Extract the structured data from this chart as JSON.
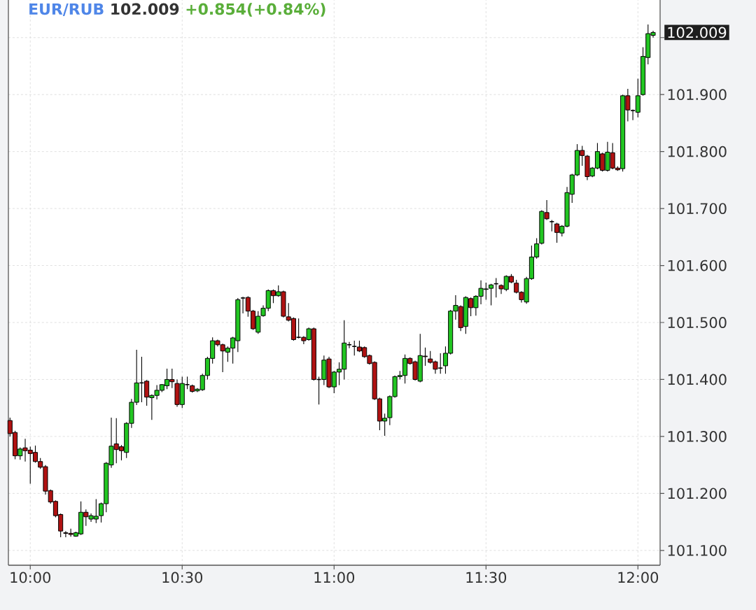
{
  "chart_data": {
    "type": "candlestick",
    "title": "EUR/RUB",
    "subtitle": "102.009",
    "annotations": [
      "+0.854(+0.84%)",
      "102.009"
    ],
    "x": [
      9.9333,
      9.95,
      9.9667,
      9.9833,
      10,
      10.0167,
      10.0333,
      10.05,
      10.0667,
      10.0833,
      10.1,
      10.1167,
      10.1333,
      10.15,
      10.1667,
      10.1833,
      10.2,
      10.2167,
      10.2333,
      10.25,
      10.2667,
      10.2833,
      10.3,
      10.3167,
      10.3333,
      10.35,
      10.3667,
      10.3833,
      10.4,
      10.4167,
      10.4333,
      10.45,
      10.4667,
      10.4833,
      10.5,
      10.5167,
      10.5333,
      10.55,
      10.5667,
      10.5833,
      10.6,
      10.6167,
      10.6333,
      10.65,
      10.6667,
      10.6833,
      10.7,
      10.7167,
      10.7333,
      10.75,
      10.7667,
      10.7833,
      10.8,
      10.8167,
      10.8333,
      10.85,
      10.8667,
      10.8833,
      10.9,
      10.9167,
      10.9333,
      10.95,
      10.9667,
      10.9833,
      11,
      11.0167,
      11.0333,
      11.05,
      11.0667,
      11.0833,
      11.1,
      11.1167,
      11.1333,
      11.15,
      11.1667,
      11.1833,
      11.2,
      11.2167,
      11.2333,
      11.25,
      11.2667,
      11.2833,
      11.3,
      11.3167,
      11.3333,
      11.35,
      11.3667,
      11.3833,
      11.4,
      11.4167,
      11.4333,
      11.45,
      11.4667,
      11.4833,
      11.5,
      11.5167,
      11.5333,
      11.55,
      11.5667,
      11.5833,
      11.6,
      11.6167,
      11.6333,
      11.65,
      11.6667,
      11.6833,
      11.7,
      11.7167,
      11.7333,
      11.75,
      11.7667,
      11.7833,
      11.8,
      11.8167,
      11.8333,
      11.85,
      11.8667,
      11.8833,
      11.9,
      11.9167,
      11.9333,
      11.95,
      11.9667,
      11.9833,
      12,
      12.0167,
      12.0333,
      12.05
    ],
    "ohlc": [
      [
        101.328,
        101.333,
        101.3,
        101.305
      ],
      [
        101.307,
        101.31,
        101.26,
        101.266
      ],
      [
        101.266,
        101.281,
        101.259,
        101.278
      ],
      [
        101.28,
        101.296,
        101.256,
        101.275
      ],
      [
        101.276,
        101.282,
        101.217,
        101.27
      ],
      [
        101.272,
        101.284,
        101.254,
        101.256
      ],
      [
        101.256,
        101.262,
        101.243,
        101.246
      ],
      [
        101.247,
        101.25,
        101.198,
        101.204
      ],
      [
        101.205,
        101.207,
        101.182,
        101.185
      ],
      [
        101.186,
        101.188,
        101.158,
        101.161
      ],
      [
        101.163,
        101.165,
        101.123,
        101.134
      ],
      [
        101.131,
        101.134,
        101.123,
        101.13
      ],
      [
        101.13,
        101.138,
        101.124,
        101.128
      ],
      [
        101.125,
        101.133,
        101.124,
        101.131
      ],
      [
        101.129,
        101.186,
        101.127,
        101.167
      ],
      [
        101.167,
        101.172,
        101.143,
        101.159
      ],
      [
        101.155,
        101.165,
        101.15,
        101.161
      ],
      [
        101.155,
        101.19,
        101.148,
        101.16
      ],
      [
        101.161,
        101.184,
        101.149,
        101.182
      ],
      [
        101.182,
        101.255,
        101.167,
        101.253
      ],
      [
        101.25,
        101.333,
        101.245,
        101.283
      ],
      [
        101.287,
        101.332,
        101.253,
        101.277
      ],
      [
        101.282,
        101.285,
        101.258,
        101.275
      ],
      [
        101.272,
        101.325,
        101.262,
        101.323
      ],
      [
        101.323,
        101.366,
        101.315,
        101.36
      ],
      [
        101.36,
        101.452,
        101.355,
        101.394
      ],
      [
        101.394,
        101.44,
        101.36,
        101.394
      ],
      [
        101.397,
        101.399,
        101.354,
        101.369
      ],
      [
        101.368,
        101.374,
        101.329,
        101.372
      ],
      [
        101.372,
        101.39,
        101.365,
        101.381
      ],
      [
        101.381,
        101.392,
        101.378,
        101.391
      ],
      [
        101.389,
        101.419,
        101.383,
        101.4
      ],
      [
        101.4,
        101.419,
        101.385,
        101.396
      ],
      [
        101.393,
        101.4,
        101.352,
        101.356
      ],
      [
        101.356,
        101.405,
        101.35,
        101.393
      ],
      [
        101.391,
        101.405,
        101.383,
        101.391
      ],
      [
        101.389,
        101.391,
        101.377,
        101.379
      ],
      [
        101.38,
        101.385,
        101.378,
        101.383
      ],
      [
        101.382,
        101.41,
        101.38,
        101.407
      ],
      [
        101.407,
        101.44,
        101.4,
        101.437
      ],
      [
        101.437,
        101.474,
        101.428,
        101.468
      ],
      [
        101.468,
        101.47,
        101.458,
        101.461
      ],
      [
        101.461,
        101.463,
        101.413,
        101.45
      ],
      [
        101.448,
        101.458,
        101.431,
        101.455
      ],
      [
        101.455,
        101.475,
        101.428,
        101.473
      ],
      [
        101.468,
        101.543,
        101.448,
        101.54
      ],
      [
        101.543,
        101.545,
        101.516,
        101.543
      ],
      [
        101.544,
        101.546,
        101.51,
        101.52
      ],
      [
        101.52,
        101.522,
        101.487,
        101.489
      ],
      [
        101.483,
        101.52,
        101.48,
        101.511
      ],
      [
        101.512,
        101.53,
        101.51,
        101.525
      ],
      [
        101.525,
        101.558,
        101.52,
        101.556
      ],
      [
        101.556,
        101.558,
        101.534,
        101.547
      ],
      [
        101.547,
        101.565,
        101.545,
        101.554
      ],
      [
        101.554,
        101.556,
        101.509,
        101.511
      ],
      [
        101.51,
        101.534,
        101.502,
        101.504
      ],
      [
        101.507,
        101.509,
        101.468,
        101.47
      ],
      [
        101.474,
        101.507,
        101.472,
        101.474
      ],
      [
        101.474,
        101.476,
        101.462,
        101.468
      ],
      [
        101.47,
        101.491,
        101.468,
        101.489
      ],
      [
        101.489,
        101.491,
        101.398,
        101.4
      ],
      [
        101.4,
        101.405,
        101.356,
        101.4
      ],
      [
        101.4,
        101.442,
        101.39,
        101.434
      ],
      [
        101.436,
        101.44,
        101.385,
        101.387
      ],
      [
        101.387,
        101.415,
        101.376,
        101.413
      ],
      [
        101.413,
        101.43,
        101.39,
        101.418
      ],
      [
        101.418,
        101.504,
        101.4,
        101.464
      ],
      [
        101.461,
        101.466,
        101.455,
        101.461
      ],
      [
        101.458,
        101.468,
        101.442,
        101.458
      ],
      [
        101.457,
        101.468,
        101.448,
        101.45
      ],
      [
        101.456,
        101.458,
        101.438,
        101.44
      ],
      [
        101.442,
        101.444,
        101.426,
        101.428
      ],
      [
        101.43,
        101.432,
        101.364,
        101.366
      ],
      [
        101.366,
        101.368,
        101.311,
        101.327
      ],
      [
        101.327,
        101.34,
        101.301,
        101.332
      ],
      [
        101.333,
        101.372,
        101.32,
        101.37
      ],
      [
        101.37,
        101.407,
        101.368,
        101.405
      ],
      [
        101.405,
        101.415,
        101.4,
        101.407
      ],
      [
        101.407,
        101.444,
        101.393,
        101.437
      ],
      [
        101.437,
        101.439,
        101.426,
        101.428
      ],
      [
        101.431,
        101.433,
        101.398,
        101.4
      ],
      [
        101.397,
        101.48,
        101.395,
        101.442
      ],
      [
        101.441,
        101.456,
        101.424,
        101.44
      ],
      [
        101.436,
        101.45,
        101.428,
        101.43
      ],
      [
        101.431,
        101.433,
        101.41,
        101.418
      ],
      [
        101.42,
        101.446,
        101.41,
        101.42
      ],
      [
        101.424,
        101.458,
        101.41,
        101.446
      ],
      [
        101.446,
        101.522,
        101.444,
        101.52
      ],
      [
        101.52,
        101.548,
        101.505,
        101.53
      ],
      [
        101.528,
        101.53,
        101.485,
        101.491
      ],
      [
        101.493,
        101.546,
        101.48,
        101.544
      ],
      [
        101.542,
        101.544,
        101.511,
        101.526
      ],
      [
        101.526,
        101.548,
        101.512,
        101.546
      ],
      [
        101.546,
        101.574,
        101.532,
        101.56
      ],
      [
        101.558,
        101.57,
        101.54,
        101.559
      ],
      [
        101.56,
        101.568,
        101.53,
        101.566
      ],
      [
        101.568,
        101.578,
        101.544,
        101.568
      ],
      [
        101.565,
        101.567,
        101.55,
        101.559
      ],
      [
        101.558,
        101.583,
        101.555,
        101.581
      ],
      [
        101.581,
        101.585,
        101.569,
        101.571
      ],
      [
        101.569,
        101.575,
        101.551,
        101.553
      ],
      [
        101.553,
        101.555,
        101.535,
        101.54
      ],
      [
        101.536,
        101.58,
        101.533,
        101.577
      ],
      [
        101.577,
        101.635,
        101.575,
        101.615
      ],
      [
        101.615,
        101.648,
        101.612,
        101.638
      ],
      [
        101.639,
        101.697,
        101.637,
        101.695
      ],
      [
        101.693,
        101.715,
        101.68,
        101.682
      ],
      [
        101.677,
        101.68,
        101.66,
        101.677
      ],
      [
        101.673,
        101.675,
        101.64,
        101.658
      ],
      [
        101.657,
        101.671,
        101.651,
        101.669
      ],
      [
        101.669,
        101.738,
        101.667,
        101.728
      ],
      [
        101.725,
        101.761,
        101.71,
        101.759
      ],
      [
        101.759,
        101.813,
        101.757,
        101.802
      ],
      [
        101.802,
        101.81,
        101.775,
        101.793
      ],
      [
        101.792,
        101.794,
        101.75,
        101.756
      ],
      [
        101.757,
        101.773,
        101.755,
        101.771
      ],
      [
        101.771,
        101.815,
        101.769,
        101.8
      ],
      [
        101.796,
        101.798,
        101.765,
        101.767
      ],
      [
        101.767,
        101.817,
        101.765,
        101.799
      ],
      [
        101.798,
        101.815,
        101.769,
        101.771
      ],
      [
        101.771,
        101.774,
        101.766,
        101.768
      ],
      [
        101.77,
        101.9,
        101.765,
        101.898
      ],
      [
        101.898,
        101.91,
        101.853,
        101.873
      ],
      [
        101.872,
        101.874,
        101.855,
        101.872
      ],
      [
        101.869,
        101.928,
        101.86,
        101.898
      ],
      [
        101.9,
        101.983,
        101.898,
        101.967
      ],
      [
        101.965,
        102.023,
        101.953,
        102.007
      ],
      [
        102.004,
        102.012,
        102.0,
        102.009
      ]
    ],
    "xlim": [
      9.928,
      12.073
    ],
    "ylim": [
      101.074,
      102.066
    ],
    "xticks": [
      {
        "value": 10,
        "label": "10:00"
      },
      {
        "value": 10.5,
        "label": "10:30"
      },
      {
        "value": 11,
        "label": "11:00"
      },
      {
        "value": 11.5,
        "label": "11:30"
      },
      {
        "value": 12,
        "label": "12:00"
      }
    ],
    "yticks": [
      {
        "value": 101.1,
        "label": "101.100"
      },
      {
        "value": 101.2,
        "label": "101.200"
      },
      {
        "value": 101.3,
        "label": "101.300"
      },
      {
        "value": 101.4,
        "label": "101.400"
      },
      {
        "value": 101.5,
        "label": "101.500"
      },
      {
        "value": 101.6,
        "label": "101.600"
      },
      {
        "value": 101.7,
        "label": "101.700"
      },
      {
        "value": 101.8,
        "label": "101.800"
      },
      {
        "value": 101.9,
        "label": "101.900"
      },
      {
        "value": 102.0,
        "label": null
      }
    ],
    "grid": true
  }
}
